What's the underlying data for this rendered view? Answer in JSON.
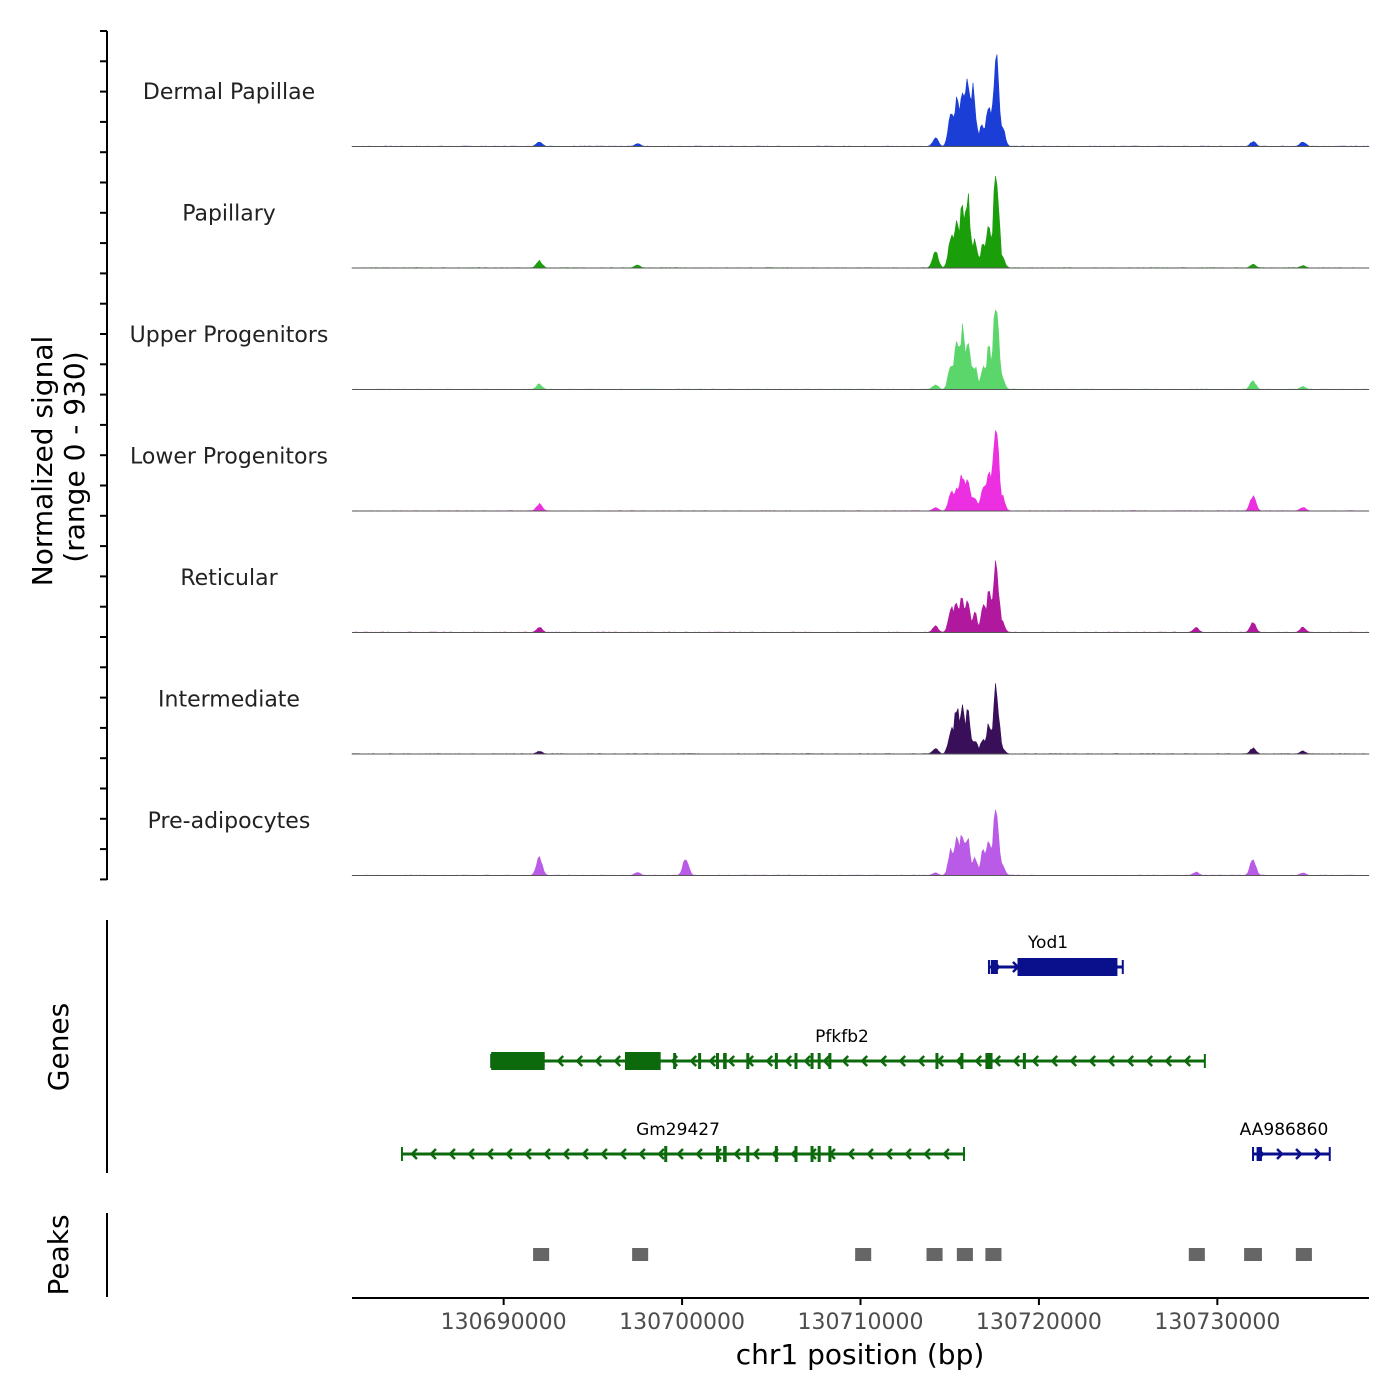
{
  "chart_data": {
    "type": "area",
    "title": "",
    "xlabel": "chr1 position (bp)",
    "ylabel": "Normalized signal",
    "ylabel_range": "(range 0 - 930)",
    "xlim": [
      130681500,
      130738500
    ],
    "ylim": [
      0,
      930
    ],
    "x_ticks": [
      130690000,
      130700000,
      130710000,
      130720000,
      130730000
    ],
    "x_tick_labels": [
      "130690000",
      "130700000",
      "130710000",
      "130720000",
      "130730000"
    ],
    "series": [
      {
        "name": "Dermal Papillae",
        "color": "#1a3ed6",
        "peaks": [
          {
            "x": 130692000,
            "y": 55
          },
          {
            "x": 130697500,
            "y": 30
          },
          {
            "x": 130714200,
            "y": 85
          },
          {
            "x": 130715100,
            "y": 380
          },
          {
            "x": 130715400,
            "y": 480
          },
          {
            "x": 130715700,
            "y": 650
          },
          {
            "x": 130716000,
            "y": 700
          },
          {
            "x": 130716300,
            "y": 620
          },
          {
            "x": 130716800,
            "y": 210
          },
          {
            "x": 130717200,
            "y": 470
          },
          {
            "x": 130717600,
            "y": 930
          },
          {
            "x": 130717900,
            "y": 250
          },
          {
            "x": 130732000,
            "y": 50
          },
          {
            "x": 130734800,
            "y": 50
          }
        ]
      },
      {
        "name": "Papillary",
        "color": "#1a9e0a",
        "peaks": [
          {
            "x": 130692000,
            "y": 75
          },
          {
            "x": 130697500,
            "y": 30
          },
          {
            "x": 130714200,
            "y": 170
          },
          {
            "x": 130715100,
            "y": 350
          },
          {
            "x": 130715400,
            "y": 520
          },
          {
            "x": 130715700,
            "y": 600
          },
          {
            "x": 130716000,
            "y": 740
          },
          {
            "x": 130716400,
            "y": 300
          },
          {
            "x": 130716900,
            "y": 250
          },
          {
            "x": 130717200,
            "y": 470
          },
          {
            "x": 130717600,
            "y": 930
          },
          {
            "x": 130717900,
            "y": 130
          },
          {
            "x": 130732000,
            "y": 40
          },
          {
            "x": 130734800,
            "y": 25
          }
        ]
      },
      {
        "name": "Upper Progenitors",
        "color": "#5bd66b",
        "peaks": [
          {
            "x": 130692000,
            "y": 55
          },
          {
            "x": 130714200,
            "y": 50
          },
          {
            "x": 130715100,
            "y": 290
          },
          {
            "x": 130715400,
            "y": 500
          },
          {
            "x": 130715700,
            "y": 620
          },
          {
            "x": 130716000,
            "y": 560
          },
          {
            "x": 130716400,
            "y": 240
          },
          {
            "x": 130716900,
            "y": 220
          },
          {
            "x": 130717200,
            "y": 420
          },
          {
            "x": 130717600,
            "y": 930
          },
          {
            "x": 130717900,
            "y": 130
          },
          {
            "x": 130732000,
            "y": 90
          },
          {
            "x": 130734800,
            "y": 30
          }
        ]
      },
      {
        "name": "Lower Progenitors",
        "color": "#ec2fe0",
        "peaks": [
          {
            "x": 130692000,
            "y": 70
          },
          {
            "x": 130714200,
            "y": 35
          },
          {
            "x": 130715100,
            "y": 200
          },
          {
            "x": 130715400,
            "y": 280
          },
          {
            "x": 130715700,
            "y": 380
          },
          {
            "x": 130716000,
            "y": 340
          },
          {
            "x": 130716400,
            "y": 150
          },
          {
            "x": 130716900,
            "y": 280
          },
          {
            "x": 130717200,
            "y": 400
          },
          {
            "x": 130717600,
            "y": 930
          },
          {
            "x": 130717900,
            "y": 180
          },
          {
            "x": 130732000,
            "y": 160
          },
          {
            "x": 130734800,
            "y": 40
          }
        ]
      },
      {
        "name": "Reticular",
        "color": "#b0189e",
        "peaks": [
          {
            "x": 130692000,
            "y": 55
          },
          {
            "x": 130714200,
            "y": 65
          },
          {
            "x": 130715100,
            "y": 250
          },
          {
            "x": 130715400,
            "y": 330
          },
          {
            "x": 130715700,
            "y": 360
          },
          {
            "x": 130716000,
            "y": 310
          },
          {
            "x": 130716400,
            "y": 200
          },
          {
            "x": 130716900,
            "y": 290
          },
          {
            "x": 130717200,
            "y": 400
          },
          {
            "x": 130717600,
            "y": 700
          },
          {
            "x": 130717900,
            "y": 120
          },
          {
            "x": 130728800,
            "y": 50
          },
          {
            "x": 130732000,
            "y": 100
          },
          {
            "x": 130734800,
            "y": 55
          }
        ]
      },
      {
        "name": "Intermediate",
        "color": "#3a0f5a",
        "peaks": [
          {
            "x": 130692000,
            "y": 30
          },
          {
            "x": 130714200,
            "y": 55
          },
          {
            "x": 130715100,
            "y": 280
          },
          {
            "x": 130715400,
            "y": 500
          },
          {
            "x": 130715700,
            "y": 520
          },
          {
            "x": 130716000,
            "y": 440
          },
          {
            "x": 130716400,
            "y": 150
          },
          {
            "x": 130716900,
            "y": 170
          },
          {
            "x": 130717200,
            "y": 300
          },
          {
            "x": 130717600,
            "y": 670
          },
          {
            "x": 130717900,
            "y": 80
          },
          {
            "x": 130732000,
            "y": 60
          },
          {
            "x": 130734800,
            "y": 30
          }
        ]
      },
      {
        "name": "Pre-adipocytes",
        "color": "#b95be6",
        "peaks": [
          {
            "x": 130692000,
            "y": 200
          },
          {
            "x": 130697500,
            "y": 35
          },
          {
            "x": 130700200,
            "y": 180
          },
          {
            "x": 130714200,
            "y": 30
          },
          {
            "x": 130715100,
            "y": 280
          },
          {
            "x": 130715400,
            "y": 430
          },
          {
            "x": 130715700,
            "y": 480
          },
          {
            "x": 130716000,
            "y": 400
          },
          {
            "x": 130716400,
            "y": 170
          },
          {
            "x": 130716900,
            "y": 280
          },
          {
            "x": 130717200,
            "y": 380
          },
          {
            "x": 130717600,
            "y": 700
          },
          {
            "x": 130717900,
            "y": 120
          },
          {
            "x": 130728800,
            "y": 35
          },
          {
            "x": 130732000,
            "y": 170
          },
          {
            "x": 130734800,
            "y": 30
          }
        ]
      }
    ],
    "genes": [
      {
        "name": "Yod1",
        "strand": "+",
        "color": "#0a0f8c",
        "start": 130717200,
        "end": 130724700,
        "exons": [
          [
            130717300,
            130717700,
            "utr"
          ],
          [
            130718800,
            130724400,
            "cds"
          ]
        ]
      },
      {
        "name": "Pfkfb2",
        "strand": "-",
        "color": "#0c6a0c",
        "start": 130689300,
        "end": 130729300,
        "exons": [
          [
            130689300,
            130692300,
            "cds"
          ],
          [
            130696800,
            130698800,
            "cds"
          ],
          [
            130699500,
            130699600,
            "small"
          ],
          [
            130700900,
            130701000,
            "small"
          ],
          [
            130701900,
            130702000,
            "small"
          ],
          [
            130702300,
            130702500,
            "small"
          ],
          [
            130703600,
            130703700,
            "small"
          ],
          [
            130705200,
            130705300,
            "small"
          ],
          [
            130706300,
            130706400,
            "small"
          ],
          [
            130707200,
            130707300,
            "small"
          ],
          [
            130707600,
            130707700,
            "small"
          ],
          [
            130708200,
            130708300,
            "small"
          ],
          [
            130714200,
            130714300,
            "small"
          ],
          [
            130715600,
            130715700,
            "small"
          ],
          [
            130717000,
            130717400,
            "small"
          ],
          [
            130719100,
            130719200,
            "small"
          ]
        ]
      },
      {
        "name": "Gm29427",
        "strand": "-",
        "color": "#0c6a0c",
        "start": 130684300,
        "end": 130715800,
        "exons": [
          [
            130699000,
            130699100,
            "small"
          ],
          [
            130701900,
            130702000,
            "small"
          ],
          [
            130702300,
            130702500,
            "small"
          ],
          [
            130703600,
            130703700,
            "small"
          ],
          [
            130705200,
            130705300,
            "small"
          ],
          [
            130706300,
            130706400,
            "small"
          ],
          [
            130707200,
            130707300,
            "small"
          ],
          [
            130707600,
            130707700,
            "small"
          ],
          [
            130708200,
            130708300,
            "small"
          ]
        ]
      },
      {
        "name": "AA986860",
        "strand": "+",
        "color": "#0a0f8c",
        "start": 130732000,
        "end": 130736300,
        "exons": [
          [
            130732200,
            130732500,
            "utr"
          ]
        ]
      }
    ],
    "peaks": [
      {
        "start": 130691650,
        "end": 130692550
      },
      {
        "start": 130697200,
        "end": 130698100
      },
      {
        "start": 130709700,
        "end": 130710600
      },
      {
        "start": 130713700,
        "end": 130714600
      },
      {
        "start": 130715400,
        "end": 130716300
      },
      {
        "start": 130717000,
        "end": 130717900
      },
      {
        "start": 130728400,
        "end": 130729300
      },
      {
        "start": 130731500,
        "end": 130732500
      },
      {
        "start": 130734400,
        "end": 130735300
      }
    ],
    "genes_label": "Genes",
    "peaks_label": "Peaks"
  }
}
